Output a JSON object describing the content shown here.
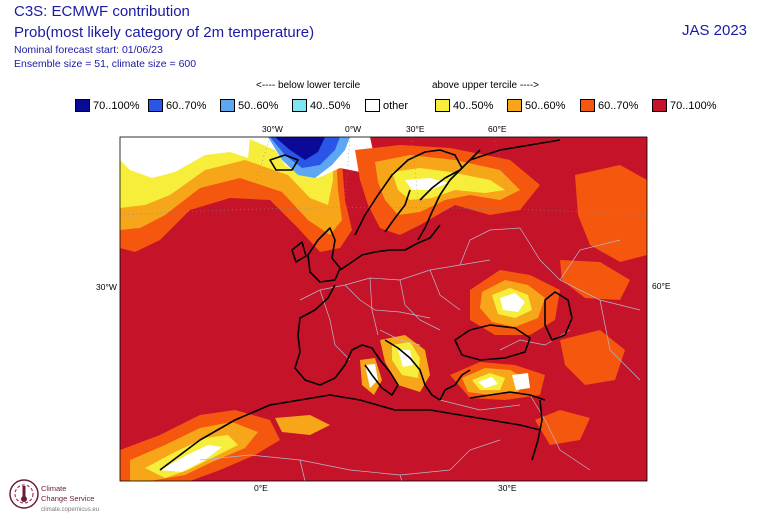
{
  "header": {
    "title_line1": "C3S: ECMWF contribution",
    "title_line2": "Prob(most likely category of 2m temperature)",
    "forecast_start": "Nominal forecast start: 01/06/23",
    "ensemble": "Ensemble size = 51, climate size = 600",
    "period": "JAS 2023"
  },
  "legend": {
    "below_title": "<---- below lower tercile",
    "above_title": "above upper tercile ---->",
    "items": [
      {
        "label": "70..100%",
        "color": "#0a0a96"
      },
      {
        "label": "60..70%",
        "color": "#2b55e6"
      },
      {
        "label": "50..60%",
        "color": "#5ca6f2"
      },
      {
        "label": "40..50%",
        "color": "#7ee6ee"
      },
      {
        "label": "other",
        "color": "#ffffff"
      },
      {
        "label": "40..50%",
        "color": "#f7ee3c"
      },
      {
        "label": "50..60%",
        "color": "#f7a61a"
      },
      {
        "label": "60..70%",
        "color": "#f5570f"
      },
      {
        "label": "70..100%",
        "color": "#c5142a"
      }
    ]
  },
  "axes": {
    "top": [
      "30°W",
      "0°W",
      "30°E",
      "60°E"
    ],
    "left": "30°W",
    "right": "60°E",
    "bottom": [
      "0°E",
      "30°E"
    ]
  },
  "logo": {
    "line1": "Climate",
    "line2": "Change Service",
    "url": "climate.copernicus.eu"
  }
}
